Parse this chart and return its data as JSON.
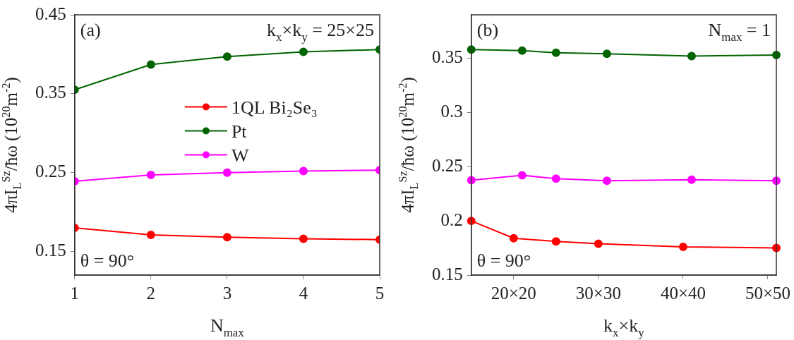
{
  "chart_data": [
    {
      "type": "line",
      "xlabel": "N$_{max}$",
      "ylabel": "4πI$_{L}$$^{Sz}$/ħω (10$^{20}$m$^{-2}$)",
      "annotations": [
        "(a)",
        "k$_{x}$×k$_{y}$ = 25×25",
        "θ = 90°"
      ],
      "x": [
        1,
        2,
        3,
        4,
        5
      ],
      "xlim": [
        1,
        5
      ],
      "xticks": [
        1,
        2,
        3,
        4,
        5
      ],
      "ylim": [
        0.12,
        0.45
      ],
      "yticks": [
        0.15,
        0.25,
        0.35,
        0.45
      ],
      "marker": "circle",
      "line_style": "solid",
      "grid": false,
      "legend": "center",
      "series": [
        {
          "name": "1QL Bi₂Se₃",
          "color": "#ff0000",
          "values": [
            0.18,
            0.171,
            0.168,
            0.166,
            0.165
          ]
        },
        {
          "name": "Pt",
          "color": "#006400",
          "values": [
            0.355,
            0.387,
            0.397,
            0.403,
            0.406
          ]
        },
        {
          "name": "W",
          "color": "#ff00ff",
          "values": [
            0.239,
            0.247,
            0.25,
            0.252,
            0.253
          ]
        }
      ]
    },
    {
      "type": "line",
      "xlabel": "k$_{x}$×k$_{y}$",
      "ylabel": "4πI$_{L}$$^{Sz}$/ħω (10$^{20}$m$^{-2}$)",
      "annotations": [
        "(b)",
        "N$_{max}$ = 1",
        "θ = 90°"
      ],
      "categories": [
        null,
        null,
        null,
        null,
        null,
        "20×20",
        null,
        null,
        null,
        null,
        null,
        null,
        null,
        null,
        null,
        "30×30",
        null,
        null,
        null,
        null,
        null,
        null,
        null,
        null,
        null,
        "40×40",
        null,
        null,
        null,
        null,
        null,
        null,
        null,
        null,
        null,
        "50×50",
        null
      ],
      "ylim": [
        0.15,
        0.39
      ],
      "yticks": [
        {
          "value": 0.15,
          "label": "0.15"
        },
        {
          "value": 0.2,
          "label": "0.2"
        },
        {
          "value": 0.25,
          "label": "0.25"
        },
        {
          "value": 0.3,
          "label": "0.3"
        },
        {
          "value": 0.35,
          "label": "0.35"
        }
      ],
      "marker": "circle",
      "line_style": "solid",
      "grid": false,
      "series": [
        {
          "color": "#ff0000",
          "values": [
            0.2,
            null,
            null,
            null,
            null,
            0.184,
            null,
            null,
            null,
            null,
            0.181,
            null,
            null,
            null,
            null,
            0.179,
            null,
            null,
            null,
            null,
            null,
            null,
            null,
            null,
            null,
            0.176,
            null,
            null,
            null,
            null,
            null,
            null,
            null,
            null,
            null,
            null,
            0.175
          ]
        },
        {
          "color": "#006400",
          "values": [
            0.358,
            null,
            null,
            null,
            null,
            null,
            0.357,
            null,
            null,
            null,
            0.355,
            null,
            null,
            null,
            null,
            null,
            0.354,
            null,
            null,
            null,
            null,
            null,
            null,
            null,
            null,
            null,
            0.352,
            null,
            null,
            null,
            null,
            null,
            null,
            null,
            null,
            null,
            0.353
          ]
        },
        {
          "color": "#ff00ff",
          "values": [
            0.2375,
            null,
            null,
            null,
            null,
            null,
            0.242,
            null,
            null,
            null,
            0.239,
            null,
            null,
            null,
            null,
            null,
            0.237,
            null,
            null,
            null,
            null,
            null,
            null,
            null,
            null,
            null,
            0.238,
            null,
            null,
            null,
            null,
            null,
            null,
            null,
            null,
            null,
            0.237
          ]
        }
      ]
    }
  ]
}
